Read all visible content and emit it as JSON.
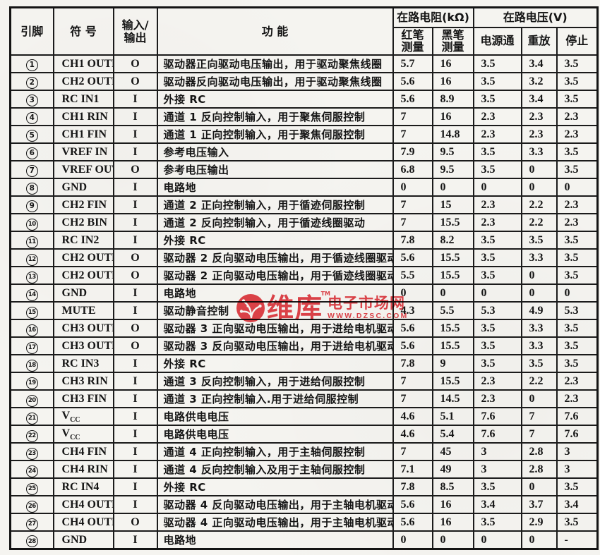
{
  "watermark": {
    "brand": "维库",
    "tm": "TM",
    "site_name": "电子市场网",
    "url": "WWW.DZSC.COM",
    "color": "#e2363e"
  },
  "table": {
    "headers": {
      "pin": "引脚",
      "symbol": "符  号",
      "io": "输入/\n输出",
      "function": "功  能",
      "resistance_group": "在路电阻(kΩ)",
      "voltage_group": "在路电压(V)",
      "red_pen": "红笔\n测量",
      "black_pen": "黑笔\n测量",
      "power_on": "电源通",
      "playback": "重放",
      "stop": "停止"
    },
    "rows": [
      {
        "pin": "1",
        "symbol": "CH1 OUTF",
        "io": "O",
        "func": "驱动器正向驱动电压输出，用于驱动聚焦线圈",
        "r_red": "5.7",
        "r_black": "16",
        "v_on": "3.5",
        "v_play": "3.4",
        "v_stop": "3.5"
      },
      {
        "pin": "2",
        "symbol": "CH2 OUTR",
        "io": "O",
        "func": "驱动器反向驱动电压输出，用于驱动聚焦线圈",
        "r_red": "5.6",
        "r_black": "16",
        "v_on": "3.5",
        "v_play": "3.2",
        "v_stop": "3.5"
      },
      {
        "pin": "3",
        "symbol": "RC IN1",
        "io": "I",
        "func": "外接 RC",
        "r_red": "5.6",
        "r_black": "8.9",
        "v_on": "3.5",
        "v_play": "3.4",
        "v_stop": "3.5"
      },
      {
        "pin": "4",
        "symbol": "CH1 RIN",
        "io": "I",
        "func": "通道 1 反向控制输入，用于聚焦伺服控制",
        "r_red": "7",
        "r_black": "16",
        "v_on": "2.3",
        "v_play": "2.3",
        "v_stop": "2.3"
      },
      {
        "pin": "5",
        "symbol": "CH1 FIN",
        "io": "I",
        "func": "通道 1 正向控制输入，用于聚焦伺服控制",
        "r_red": "7",
        "r_black": "14.8",
        "v_on": "2.3",
        "v_play": "2.3",
        "v_stop": "2.3"
      },
      {
        "pin": "6",
        "symbol": "VREF IN",
        "io": "I",
        "func": "参考电压输入",
        "r_red": "7.9",
        "r_black": "9.5",
        "v_on": "3.5",
        "v_play": "3.3",
        "v_stop": "3.5"
      },
      {
        "pin": "7",
        "symbol": "VREF OUT",
        "io": "O",
        "func": "参考电压输出",
        "r_red": "6.8",
        "r_black": "9.5",
        "v_on": "3.5",
        "v_play": "0",
        "v_stop": "3.5"
      },
      {
        "pin": "8",
        "symbol": "GND",
        "io": "I",
        "func": "电路地",
        "r_red": "0",
        "r_black": "0",
        "v_on": "0",
        "v_play": "0",
        "v_stop": "0"
      },
      {
        "pin": "9",
        "symbol": "CH2 FIN",
        "io": "I",
        "func": "通道 2 正向控制输入，用于循迹伺服控制",
        "r_red": "7",
        "r_black": "15",
        "v_on": "2.3",
        "v_play": "2.2",
        "v_stop": "2.3"
      },
      {
        "pin": "10",
        "symbol": "CH2 BIN",
        "io": "I",
        "func": "通道 2 反向控制输入，用于循迹线圈驱动",
        "r_red": "7",
        "r_black": "15.5",
        "v_on": "2.3",
        "v_play": "2.2",
        "v_stop": "2.3"
      },
      {
        "pin": "11",
        "symbol": "RC IN2",
        "io": "I",
        "func": "外接 RC",
        "r_red": "7.8",
        "r_black": "8.2",
        "v_on": "3.5",
        "v_play": "3.5",
        "v_stop": "3.5"
      },
      {
        "pin": "12",
        "symbol": "CH2 OUTR",
        "io": "O",
        "func": "驱动器 2 反向驱动电压输出，用于循迹线圈驱动",
        "r_red": "5.6",
        "r_black": "15.5",
        "v_on": "3.5",
        "v_play": "3.3",
        "v_stop": "3.5"
      },
      {
        "pin": "13",
        "symbol": "CH2 OUTF",
        "io": "O",
        "func": "驱动器 2 正向驱动电压输出，用于循迹线圈驱动",
        "r_red": "5.5",
        "r_black": "15.5",
        "v_on": "3.5",
        "v_play": "0",
        "v_stop": "3.5"
      },
      {
        "pin": "14",
        "symbol": "GND",
        "io": "I",
        "func": "电路地",
        "r_red": "0",
        "r_black": "0",
        "v_on": "0",
        "v_play": "0",
        "v_stop": "0"
      },
      {
        "pin": "15",
        "symbol": "MUTE",
        "io": "I",
        "func": "驱动静音控制",
        "r_red": "4.3",
        "r_black": "5.5",
        "v_on": "5.3",
        "v_play": "4.9",
        "v_stop": "5.3"
      },
      {
        "pin": "16",
        "symbol": "CH3 OUTF",
        "io": "O",
        "func": "驱动器 3 正向驱动电压输出，用于进给电机驱动",
        "r_red": "5.6",
        "r_black": "15.5",
        "v_on": "3.5",
        "v_play": "3.3",
        "v_stop": "3.5"
      },
      {
        "pin": "17",
        "symbol": "CH3 OUTR",
        "io": "O",
        "func": "驱动器 3 反向驱动电压输出，用于进给电机驱动",
        "r_red": "5.6",
        "r_black": "15.5",
        "v_on": "3.5",
        "v_play": "3.3",
        "v_stop": "3.5"
      },
      {
        "pin": "18",
        "symbol": "RC IN3",
        "io": "I",
        "func": "外接 RC",
        "r_red": "7.8",
        "r_black": "9",
        "v_on": "3.5",
        "v_play": "3.5",
        "v_stop": "3.5"
      },
      {
        "pin": "19",
        "symbol": "CH3 RIN",
        "io": "I",
        "func": "通道 3 反向控制输入，用于进给伺服控制",
        "r_red": "7",
        "r_black": "15.5",
        "v_on": "2.3",
        "v_play": "2.2",
        "v_stop": "2.3"
      },
      {
        "pin": "20",
        "symbol": "CH3 FIN",
        "io": "I",
        "func": "通道 3 正向控制输入.用于进给伺服控制",
        "r_red": "7",
        "r_black": "14.5",
        "v_on": "2.3",
        "v_play": "0",
        "v_stop": "2.3"
      },
      {
        "pin": "21",
        "symbol": "V_CC",
        "io": "I",
        "func": "电路供电电压",
        "r_red": "4.6",
        "r_black": "5.1",
        "v_on": "7.6",
        "v_play": "7",
        "v_stop": "7.6"
      },
      {
        "pin": "22",
        "symbol": "V_CC",
        "io": "I",
        "func": "电路供电电压",
        "r_red": "4.6",
        "r_black": "5.4",
        "v_on": "7.6",
        "v_play": "7",
        "v_stop": "7.6"
      },
      {
        "pin": "23",
        "symbol": "CH4 FIN",
        "io": "I",
        "func": "通道 4 正向控制输入，用于主轴伺服控制",
        "r_red": "7",
        "r_black": "45",
        "v_on": "3",
        "v_play": "2.8",
        "v_stop": "3"
      },
      {
        "pin": "24",
        "symbol": "CH4 RIN",
        "io": "I",
        "func": "通道 4 反向控制输入及用于主轴伺服控制",
        "r_red": "7.1",
        "r_black": "49",
        "v_on": "3",
        "v_play": "2.8",
        "v_stop": "3"
      },
      {
        "pin": "25",
        "symbol": "RC IN4",
        "io": "I",
        "func": "外接 RC",
        "r_red": "7.8",
        "r_black": "8.5",
        "v_on": "3.5",
        "v_play": "0",
        "v_stop": "3.5"
      },
      {
        "pin": "26",
        "symbol": "CH4 OUTR",
        "io": "I",
        "func": "驱动器 4 反向驱动电压输出，用于主轴电机驱动",
        "r_red": "5.6",
        "r_black": "16",
        "v_on": "3.4",
        "v_play": "3.7",
        "v_stop": "3.4"
      },
      {
        "pin": "27",
        "symbol": "CH4 OUTF",
        "io": "O",
        "func": "驱动器 4 正向驱动电压输出，用于主轴电机驱动",
        "r_red": "5.6",
        "r_black": "16",
        "v_on": "3.5",
        "v_play": "2.9",
        "v_stop": "3.5"
      },
      {
        "pin": "28",
        "symbol": "GND",
        "io": "I",
        "func": "电路地",
        "r_red": "0",
        "r_black": "0",
        "v_on": "0",
        "v_play": "0",
        "v_stop": "-"
      }
    ]
  }
}
